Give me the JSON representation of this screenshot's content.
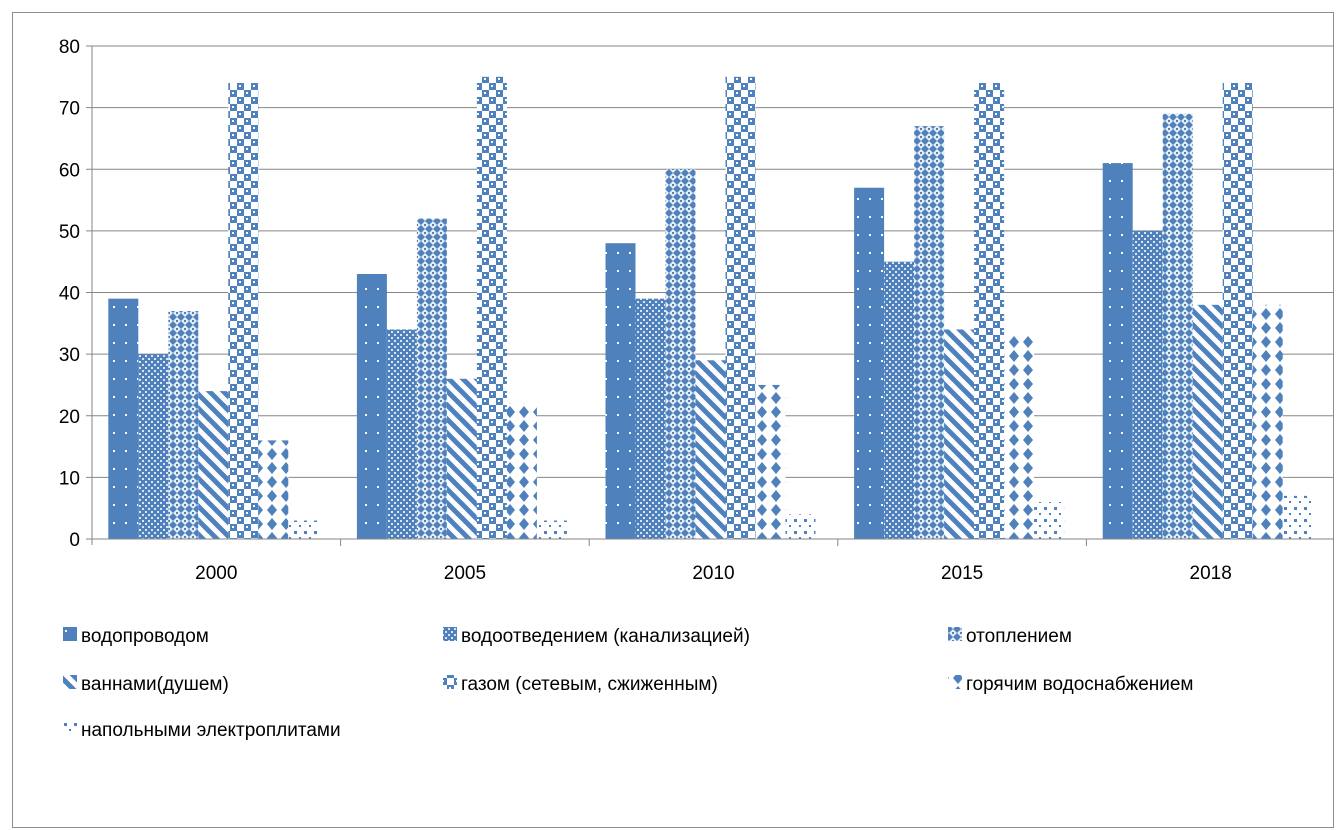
{
  "chart_data": {
    "type": "bar",
    "categories": [
      "2000",
      "2005",
      "2010",
      "2015",
      "2018"
    ],
    "series": [
      {
        "name": "водопроводом",
        "values": [
          39,
          43,
          48,
          57,
          61
        ],
        "pattern": "dots"
      },
      {
        "name": "водоотведением (канализацией)",
        "values": [
          30,
          34,
          39,
          45,
          50
        ],
        "pattern": "checker"
      },
      {
        "name": "отоплением",
        "values": [
          37,
          52,
          60,
          67,
          69
        ],
        "pattern": "diamond"
      },
      {
        "name": "ваннами(душем)",
        "values": [
          24,
          26,
          29,
          34,
          38
        ],
        "pattern": "stripes"
      },
      {
        "name": "газом (сетевым, сжиженным)",
        "values": [
          74,
          75,
          75,
          74,
          74
        ],
        "pattern": "bigchecker"
      },
      {
        "name": "горячим водоснабжением",
        "values": [
          16,
          22,
          25,
          33,
          38
        ],
        "pattern": "polka"
      },
      {
        "name": "напольными электроплитами",
        "values": [
          3,
          3,
          4,
          6,
          7
        ],
        "pattern": "sparse"
      }
    ],
    "title": "",
    "xlabel": "",
    "ylabel": "",
    "ylim": [
      0,
      80
    ],
    "yticks": [
      "0",
      "10",
      "20",
      "30",
      "40",
      "50",
      "60",
      "70",
      "80"
    ],
    "grid": true,
    "legend_position": "bottom",
    "colors": {
      "bar": "#4F81BD",
      "bar_light": "#dbe5f1",
      "grid": "#868686",
      "frame": "#8e8e8e"
    }
  }
}
